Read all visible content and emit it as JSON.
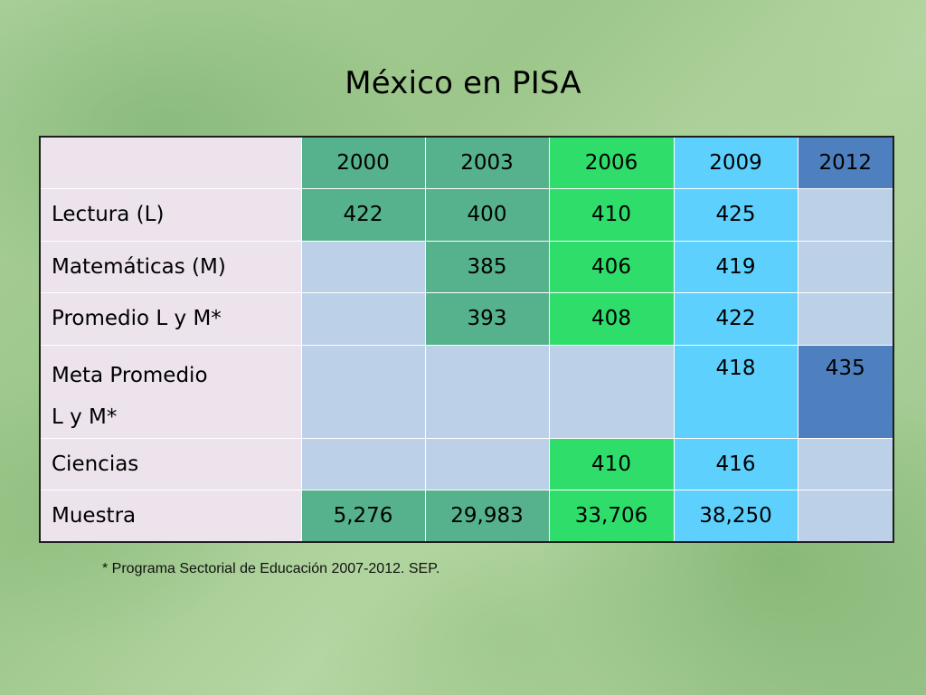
{
  "title": "México en PISA",
  "table": {
    "years": [
      "2000",
      "2003",
      "2006",
      "2009",
      "2012"
    ],
    "rows": [
      {
        "label": "Lectura (L)",
        "values": [
          "422",
          "400",
          "410",
          "425",
          ""
        ]
      },
      {
        "label": "Matemáticas (M)",
        "values": [
          "",
          "385",
          "406",
          "419",
          ""
        ]
      },
      {
        "label": "Promedio L y M*",
        "values": [
          "",
          "393",
          "408",
          "422",
          ""
        ]
      },
      {
        "label_line1": "Meta Promedio",
        "label_line2": "L y M*",
        "values": [
          "",
          "",
          "",
          "418",
          "435"
        ]
      },
      {
        "label": "Ciencias",
        "values": [
          "",
          "",
          "410",
          "416",
          ""
        ]
      },
      {
        "label": "Muestra",
        "values": [
          "5,276",
          "29,983",
          "33,706",
          "38,250",
          ""
        ]
      }
    ]
  },
  "colors": {
    "year_2000": "#56b28c",
    "year_2003": "#56b28c",
    "year_2006": "#2fdd6a",
    "year_2009": "#5dd0fd",
    "year_2012": "#4e7fbf",
    "empty_cell": "#bcd0e8",
    "label_cell": "#ece3ec"
  },
  "footnote": "* Programa Sectorial de Educación 2007-2012. SEP."
}
